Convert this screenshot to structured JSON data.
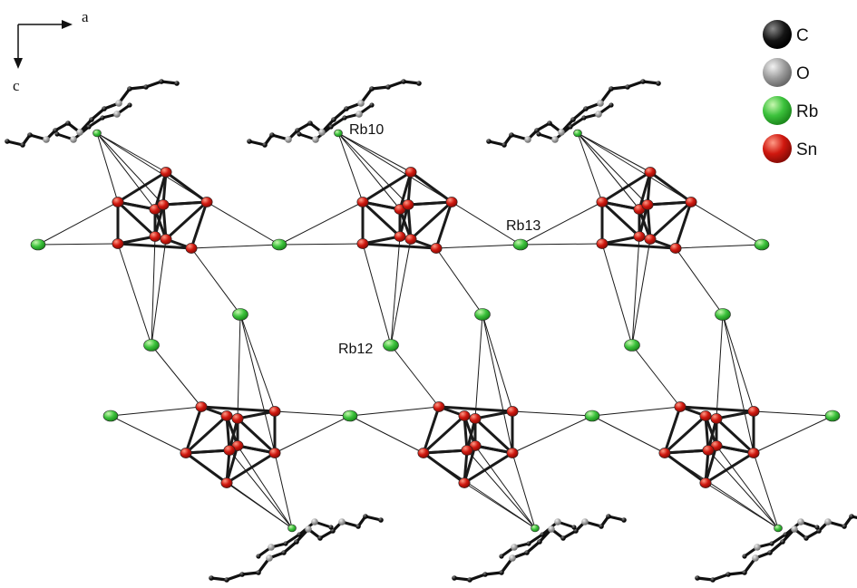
{
  "axes": {
    "horizontal_label": "a",
    "vertical_label": "c"
  },
  "legend": [
    {
      "symbol": "C",
      "color": "#111111",
      "highlight": "#7a7a7a"
    },
    {
      "symbol": "O",
      "color": "#8c8c8c",
      "highlight": "#eeeeee"
    },
    {
      "symbol": "Rb",
      "color": "#2fb52f",
      "highlight": "#b8f5a0"
    },
    {
      "symbol": "Sn",
      "color": "#c8150e",
      "highlight": "#ff8c78"
    }
  ],
  "atom_labels": {
    "rb10": "Rb10",
    "rb12": "Rb12",
    "rb13": "Rb13"
  },
  "colors": {
    "bond": "#1a1a1a",
    "carbon": "#111111",
    "oxygen": "#9a9a9a",
    "rubidium": "#3cc23c",
    "tin": "#d0180f"
  }
}
